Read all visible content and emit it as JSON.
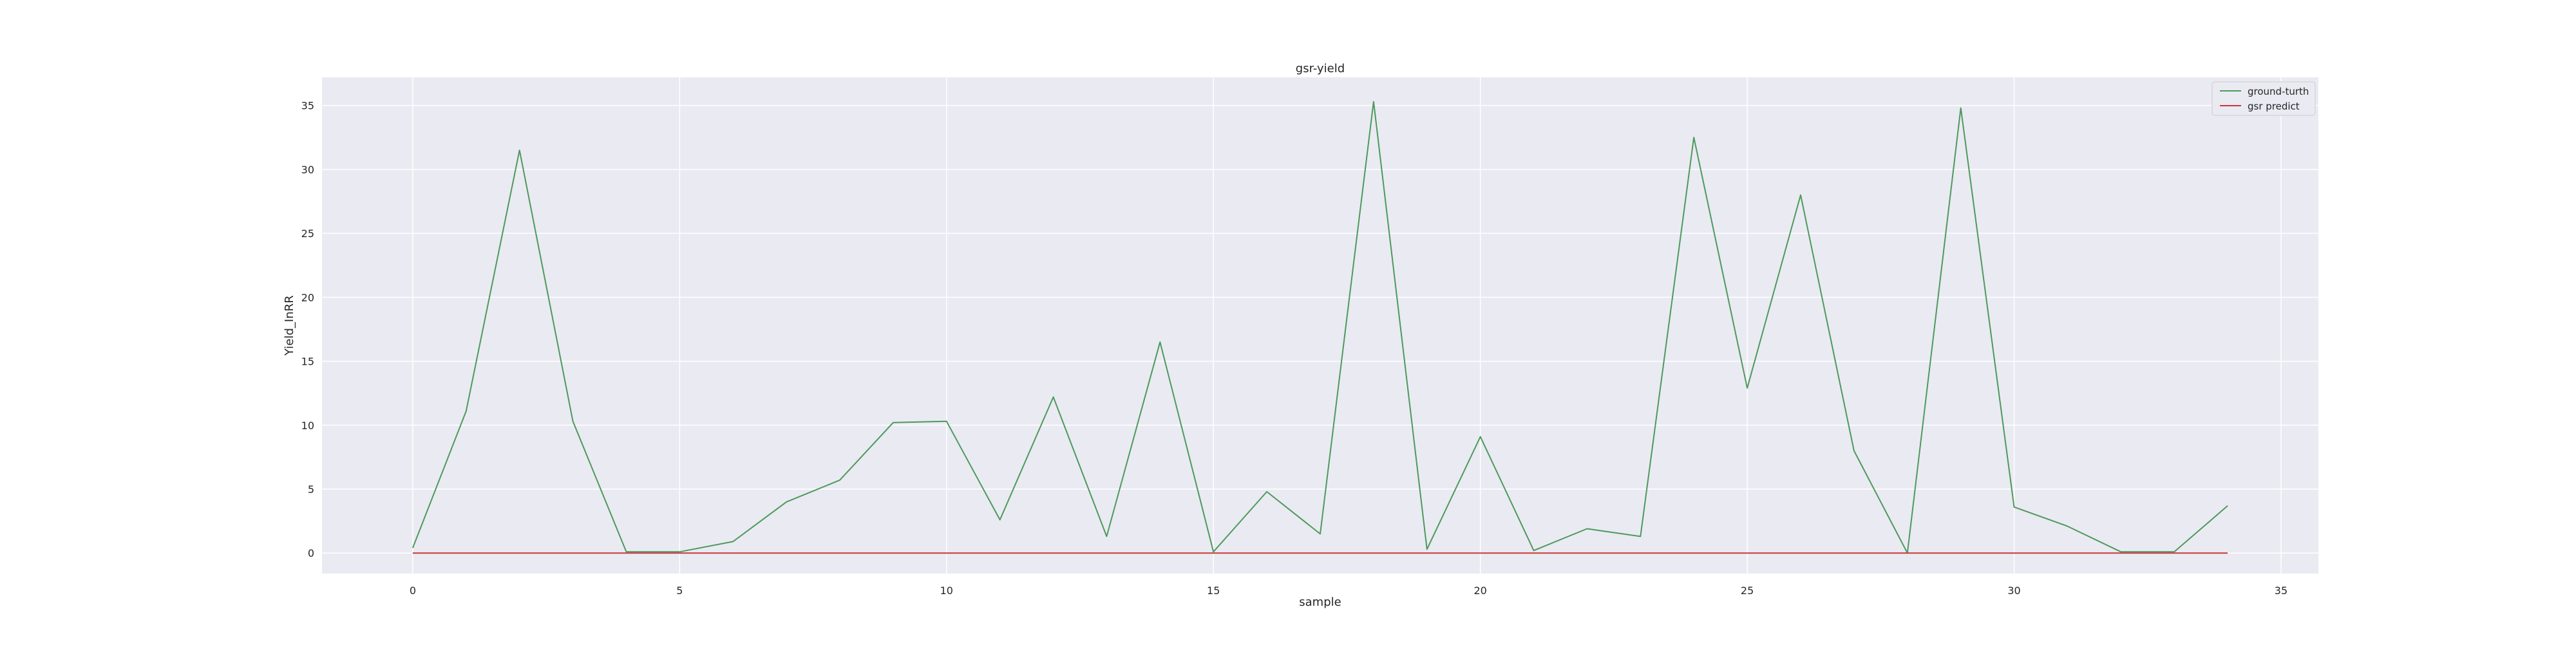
{
  "chart_data": {
    "type": "line",
    "title": "gsr-yield",
    "xlabel": "sample",
    "ylabel": "Yield_InRR",
    "xlim": [
      -1.7,
      35.7
    ],
    "ylim": [
      -1.6,
      37.2
    ],
    "x_ticks": [
      0,
      5,
      10,
      15,
      20,
      25,
      30,
      35
    ],
    "y_ticks": [
      0,
      5,
      10,
      15,
      20,
      25,
      30,
      35
    ],
    "grid": true,
    "legend_position": "top-right",
    "x": [
      0,
      1,
      2,
      3,
      4,
      5,
      6,
      7,
      8,
      9,
      10,
      11,
      12,
      13,
      14,
      15,
      16,
      17,
      18,
      19,
      20,
      21,
      22,
      23,
      24,
      25,
      26,
      27,
      28,
      29,
      30,
      31,
      32,
      33,
      34
    ],
    "series": [
      {
        "name": "ground-turth",
        "color": "#4c9a5c",
        "values": [
          0.4,
          11.1,
          31.5,
          10.3,
          0.1,
          0.1,
          0.9,
          4.0,
          5.7,
          10.2,
          10.3,
          2.6,
          12.2,
          1.3,
          16.5,
          0.1,
          4.8,
          1.5,
          35.3,
          0.3,
          9.1,
          0.2,
          1.9,
          1.3,
          32.5,
          12.9,
          28.0,
          8.0,
          0.0,
          34.8,
          3.6,
          2.1,
          0.1,
          0.1,
          3.7
        ]
      },
      {
        "name": "gsr predict",
        "color": "#c8383c",
        "values": [
          0,
          0,
          0,
          0,
          0,
          0,
          0,
          0,
          0,
          0,
          0,
          0,
          0,
          0,
          0,
          0,
          0,
          0,
          0,
          0,
          0,
          0,
          0,
          0,
          0,
          0,
          0,
          0,
          0,
          0,
          0,
          0,
          0,
          0,
          0
        ]
      }
    ]
  }
}
